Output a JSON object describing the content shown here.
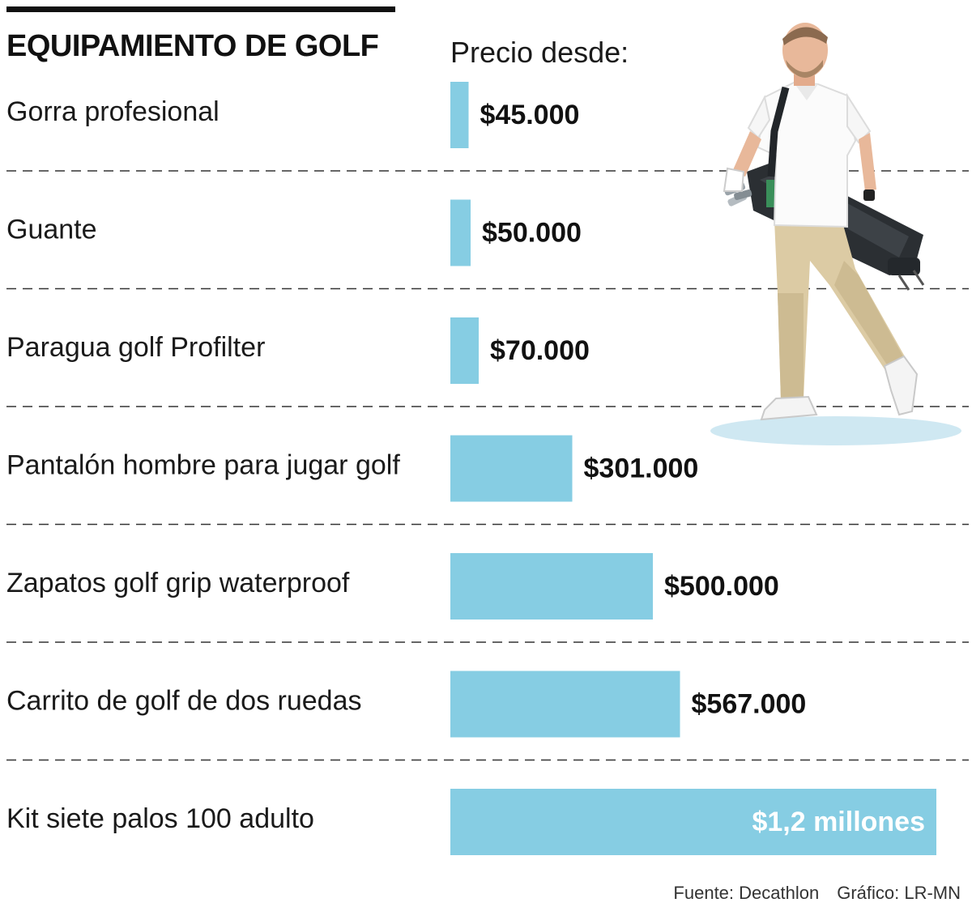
{
  "header": {
    "title": "EQUIPAMIENTO DE GOLF",
    "price_label": "Precio desde:"
  },
  "footer": {
    "source": "Fuente: Decathlon",
    "credit": "Gráfico: LR-MN"
  },
  "colors": {
    "bar": "#86cde3",
    "divider": "#333333",
    "shadow": "#cfe8f2"
  },
  "illustration": {
    "name": "golfer-carrying-bag-icon"
  },
  "chart_data": {
    "type": "bar",
    "orientation": "horizontal",
    "categories": [
      "Gorra profesional",
      "Guante",
      "Paragua golf Profilter",
      "Pantalón hombre para jugar golf",
      "Zapatos golf grip waterproof",
      "Carrito de golf de dos ruedas",
      "Kit siete palos 100 adulto"
    ],
    "values": [
      45000,
      50000,
      70000,
      301000,
      500000,
      567000,
      1200000
    ],
    "value_labels": [
      "$45.000",
      "$50.000",
      "$70.000",
      "$301.000",
      "$500.000",
      "$567.000",
      "$1,2 millones"
    ],
    "label_inside": [
      false,
      false,
      false,
      false,
      false,
      false,
      true
    ],
    "xlim": [
      0,
      1200000
    ],
    "grid": false,
    "legend": "none"
  }
}
